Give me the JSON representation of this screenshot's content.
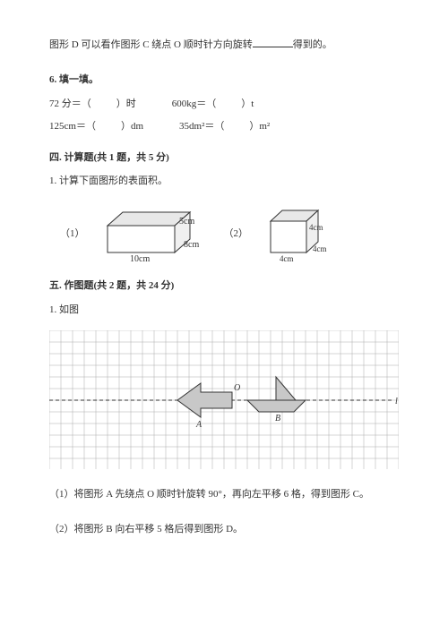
{
  "intro": {
    "line": "图形 D 可以看作图形 C 绕点 O 顺时针方向旋转",
    "tail": "得到的。"
  },
  "q6": {
    "title": "6. 填一填。",
    "row1": {
      "a": "72 分＝（",
      "a2": "）时",
      "b": "600kg＝（",
      "b2": "）t"
    },
    "row2": {
      "a": "125cm＝（",
      "a2": "）dm",
      "b": "35dm²＝（",
      "b2": "）m²"
    }
  },
  "sec4": {
    "title": "四. 计算题(共 1 题，共 5 分)",
    "q1": "1. 计算下面图形的表面积。",
    "fig1": {
      "label": "（1）",
      "w": "10cm",
      "h": "5cm",
      "d": "8cm"
    },
    "fig2": {
      "label": "（2）",
      "s1": "4cm",
      "s2": "4cm",
      "s3": "4cm"
    }
  },
  "sec5": {
    "title": "五. 作图题(共 2 题，共 24 分)",
    "q1": "1. 如图",
    "sub1": "（1）将图形 A 先绕点 O 顺时针旋转 90°，再向左平移 6 格，得到图形 C。",
    "sub2": "（2）将图形 B 向右平移 5 格后得到图形 D。",
    "labelO": "O",
    "labelA": "A",
    "labelB": "B",
    "labelL": "l"
  },
  "colors": {
    "stroke": "#333333",
    "fillGray": "#d0d0d0",
    "grid": "#888888",
    "dash": "#333333"
  }
}
